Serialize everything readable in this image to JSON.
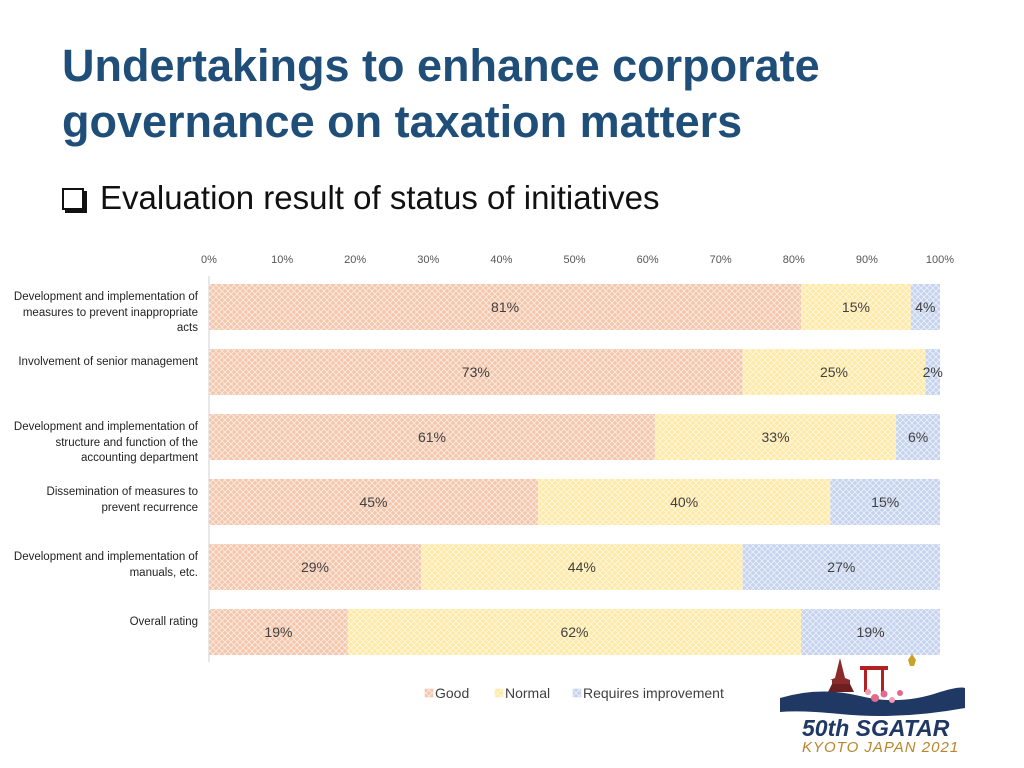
{
  "page": {
    "title": "Undertakings to enhance corporate governance on taxation matters",
    "subtitle": "Evaluation result of status of initiatives",
    "logo_text": "50th SGATAR",
    "logo_subtext": "KYOTO JAPAN 2021"
  },
  "chart_data": {
    "type": "bar",
    "orientation": "horizontal",
    "stacked": "percent",
    "categories": [
      "Development and implementation of measures to prevent inappropriate acts",
      "Involvement of senior management",
      "Development and implementation of structure and function of the accounting department",
      "Dissemination of measures to prevent recurrence",
      "Development and implementation of manuals, etc.",
      "Overall rating"
    ],
    "series": [
      {
        "name": "Good",
        "values": [
          81,
          73,
          61,
          45,
          29,
          19
        ],
        "color": "#f4c7ac"
      },
      {
        "name": "Normal",
        "values": [
          15,
          25,
          33,
          40,
          44,
          62
        ],
        "color": "#ffe9a6"
      },
      {
        "name": "Requires improvement",
        "values": [
          4,
          2,
          6,
          15,
          27,
          19
        ],
        "color": "#c5d3ee"
      }
    ],
    "data_labels": [
      [
        "81%",
        "15%",
        "4%"
      ],
      [
        "73%",
        "25%",
        "2%"
      ],
      [
        "61%",
        "33%",
        "6%"
      ],
      [
        "45%",
        "40%",
        "15%"
      ],
      [
        "29%",
        "44%",
        "27%"
      ],
      [
        "19%",
        "62%",
        "19%"
      ]
    ],
    "x_ticks": [
      "0%",
      "10%",
      "20%",
      "30%",
      "40%",
      "50%",
      "60%",
      "70%",
      "80%",
      "90%",
      "100%"
    ],
    "xlim": [
      0,
      100
    ],
    "grid": false,
    "legend_position": "bottom"
  }
}
